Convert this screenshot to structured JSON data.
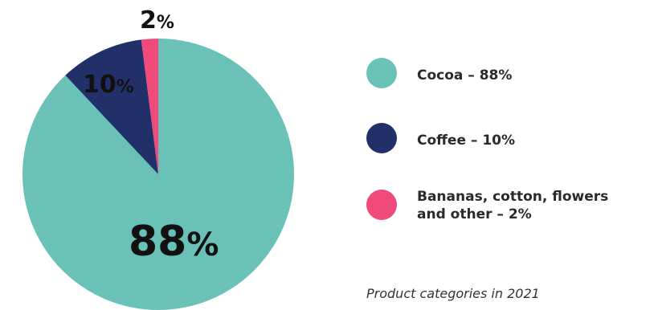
{
  "chart_data": {
    "type": "pie",
    "categories": [
      "Cocoa",
      "Coffee",
      "Bananas, cotton, flowers and other"
    ],
    "values": [
      88,
      10,
      2
    ],
    "slice_labels": [
      "88",
      "10",
      "2"
    ],
    "percent_sign": "%",
    "colors": [
      "#6ac1b8",
      "#22306a",
      "#ef4a7a"
    ],
    "legend_placement": "right"
  },
  "legend": {
    "items": [
      {
        "text": "Cocoa – 88%",
        "color": "#6ac1b8"
      },
      {
        "text": "Coffee – 10%",
        "color": "#22306a"
      },
      {
        "text": "Bananas, cotton, flowers\nand other  – 2%",
        "color": "#ef4a7a"
      }
    ]
  },
  "caption": "Product categories in 2021"
}
